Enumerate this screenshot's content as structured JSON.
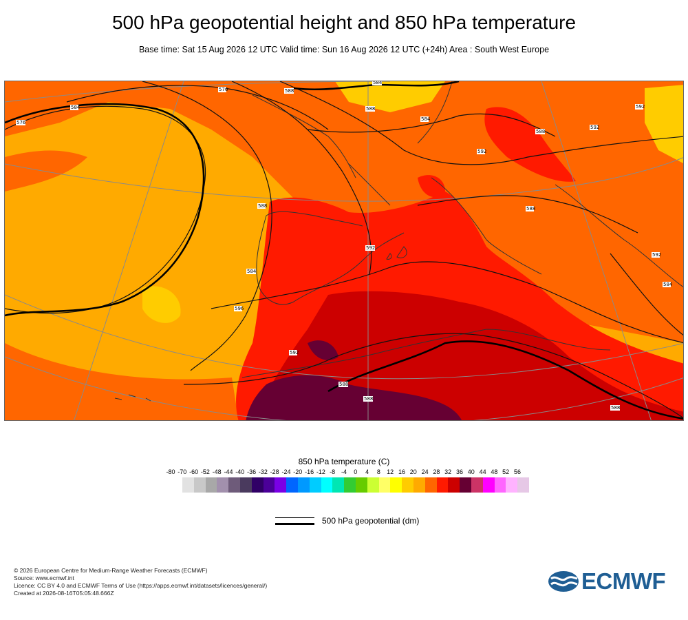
{
  "title": "500 hPa geopotential height and 850 hPa temperature",
  "subtitle": "Base time: Sat 15 Aug 2026 12 UTC Valid time: Sun 16 Aug 2026 12 UTC (+24h) Area : South West Europe",
  "colorbar": {
    "title": "850 hPa temperature (C)",
    "ticks": [
      "-80",
      "-70",
      "-60",
      "-52",
      "-48",
      "-44",
      "-40",
      "-36",
      "-32",
      "-28",
      "-24",
      "-20",
      "-16",
      "-12",
      "-8",
      "-4",
      "0",
      "4",
      "8",
      "12",
      "16",
      "20",
      "24",
      "28",
      "32",
      "36",
      "40",
      "44",
      "48",
      "52",
      "56"
    ],
    "colors": [
      "#e2e2e2",
      "#c8c8c8",
      "#a8a8a8",
      "#a290ad",
      "#6e5b7a",
      "#4a3a5e",
      "#300066",
      "#4b0099",
      "#7a00e6",
      "#0066ff",
      "#0099ff",
      "#00ccff",
      "#00ffff",
      "#00e6b3",
      "#33cc33",
      "#66cc00",
      "#ccff33",
      "#ffff66",
      "#ffff00",
      "#ffcc00",
      "#ffaa00",
      "#ff6600",
      "#ff1a00",
      "#cc0000",
      "#660033",
      "#cc3366",
      "#ff00ff",
      "#ff66ff",
      "#ffb3ff",
      "#e6c8e6",
      "#e6e6e6"
    ]
  },
  "legend": {
    "label": "500 hPa geopotential (dm)"
  },
  "map_labels": {
    "l1": "576",
    "l2": "584",
    "l3": "576",
    "l4": "588",
    "l5": "584",
    "l6": "588",
    "l7": "584",
    "l8": "592",
    "l9": "588",
    "l10": "592",
    "l11": "592",
    "l12": "588",
    "l13": "584",
    "l14": "592",
    "l15": "596",
    "l16": "588",
    "l17": "592",
    "l18": "584",
    "l19": "592",
    "l20": "588",
    "l21": "588",
    "l22": "588"
  },
  "footer": {
    "copyright": "© 2026 European Centre for Medium-Range Weather Forecasts (ECMWF)",
    "source": "Source: www.ecmwf.int",
    "licence": "Licence: CC BY 4.0 and ECMWF Terms of Use (https://apps.ecmwf.int/datasets/licences/general/)",
    "created": "Created at 2026-08-16T05:05:48.666Z"
  },
  "logo": {
    "text": "ECMWF",
    "color": "#1f5e94"
  }
}
